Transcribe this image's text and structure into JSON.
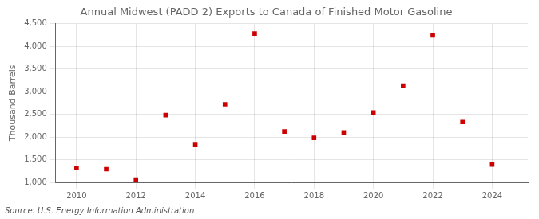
{
  "chart_data": {
    "type": "scatter",
    "title": "Annual Midwest (PADD 2) Exports to Canada of Finished Motor Gasoline",
    "ylabel": "Thousand Barrels",
    "annotations": [
      "Source: U.S. Energy Information Administration"
    ],
    "x": [
      2010,
      2011,
      2012,
      2013,
      2014,
      2015,
      2016,
      2017,
      2018,
      2019,
      2020,
      2021,
      2022,
      2023,
      2024
    ],
    "values": [
      1320,
      1290,
      1060,
      2480,
      1840,
      2720,
      4280,
      2120,
      1980,
      2100,
      2540,
      3130,
      4240,
      2330,
      1390
    ],
    "color": "#cc0000",
    "marker": "square",
    "xlim": [
      2009.3,
      2025.2
    ],
    "xticks": [
      2010,
      2012,
      2014,
      2016,
      2018,
      2020,
      2022,
      2024
    ],
    "ylim": [
      1000,
      4500
    ],
    "yticks": [
      {
        "value": 1000,
        "label": "1,000"
      },
      {
        "value": 1500,
        "label": "1,500"
      },
      {
        "value": 2000,
        "label": "2,000"
      },
      {
        "value": 2500,
        "label": "2,500"
      },
      {
        "value": 3000,
        "label": "3,000"
      },
      {
        "value": 3500,
        "label": "3,500"
      },
      {
        "value": 4000,
        "label": "4,000"
      },
      {
        "value": 4500,
        "label": "4,500"
      }
    ],
    "grid": true
  }
}
